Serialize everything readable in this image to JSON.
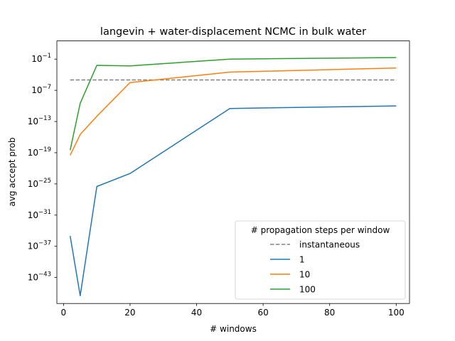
{
  "chart_data": {
    "type": "line",
    "title": "langevin + water-displacement NCMC in bulk water",
    "xlabel": "# windows",
    "ylabel": "avg accept prob",
    "xlim": [
      -2,
      104
    ],
    "ylog": true,
    "ylim_log10": [
      -48,
      2.5
    ],
    "xticks": [
      0,
      20,
      40,
      60,
      80,
      100
    ],
    "yticks_exp": [
      -1,
      -7,
      -13,
      -19,
      -25,
      -31,
      -37,
      -43
    ],
    "grid": false,
    "legend": {
      "title": "# propagation steps per window",
      "placement": "lower-right"
    },
    "series": [
      {
        "name": "instantaneous",
        "style": "dashed",
        "color": "#808080",
        "x": [
          2,
          100
        ],
        "log10_y": [
          -5,
          -5
        ]
      },
      {
        "name": "1",
        "style": "solid",
        "color": "#1f77b4",
        "x": [
          2,
          5,
          10,
          20,
          50,
          100
        ],
        "log10_y": [
          -35,
          -46.5,
          -25.5,
          -23,
          -10.5,
          -10
        ]
      },
      {
        "name": "10",
        "style": "solid",
        "color": "#ff7f0e",
        "x": [
          2,
          5,
          10,
          20,
          50,
          100
        ],
        "log10_y": [
          -19.5,
          -15.5,
          -12,
          -5.5,
          -3.5,
          -2.7
        ]
      },
      {
        "name": "100",
        "style": "solid",
        "color": "#2ca02c",
        "x": [
          2,
          5,
          10,
          20,
          50,
          100
        ],
        "log10_y": [
          -18.5,
          -9.5,
          -2.2,
          -2.3,
          -1,
          -0.7
        ]
      }
    ]
  }
}
